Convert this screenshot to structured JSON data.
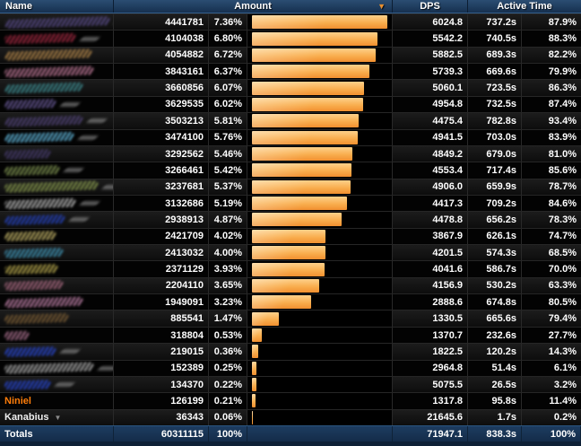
{
  "header": {
    "columns": [
      {
        "label": "Name",
        "sorted": false
      },
      {
        "label": "Amount",
        "sorted": true
      },
      {
        "label": "DPS",
        "sorted": false
      },
      {
        "label": "Active Time",
        "sorted": false
      }
    ],
    "sort_icon": "▼"
  },
  "colors": {
    "accent_sort_arrow": "#e89030",
    "bar_top": "#fdd08a",
    "bar_mid": "#f9ae4e",
    "bar_bottom": "#f19030",
    "header_top": "#2b4d72",
    "header_bottom": "#16304f",
    "totals_top": "#1d3c60",
    "totals_bottom": "#142c49",
    "niniel_class_color": "#ff7d0a"
  },
  "bar_scale": {
    "max_pct": 7.36
  },
  "rows": [
    {
      "name": {
        "censored": true,
        "color": "#574a86",
        "width": 118,
        "tail": true
      },
      "amount": "4441781",
      "pct": "7.36%",
      "pct_value": 7.36,
      "dps": "6024.8",
      "time": "737.2s",
      "active": "87.9%"
    },
    {
      "name": {
        "censored": true,
        "color": "#a22840",
        "width": 80,
        "tail": true
      },
      "amount": "4104038",
      "pct": "6.80%",
      "pct_value": 6.8,
      "dps": "5542.2",
      "time": "740.5s",
      "active": "88.3%"
    },
    {
      "name": {
        "censored": true,
        "color": "#b08448",
        "width": 98,
        "tail": false
      },
      "amount": "4054882",
      "pct": "6.72%",
      "pct_value": 6.72,
      "dps": "5882.5",
      "time": "689.3s",
      "active": "82.2%"
    },
    {
      "name": {
        "censored": true,
        "color": "#bd7796",
        "width": 100,
        "tail": false
      },
      "amount": "3843161",
      "pct": "6.37%",
      "pct_value": 6.37,
      "dps": "5739.3",
      "time": "669.6s",
      "active": "79.9%"
    },
    {
      "name": {
        "censored": true,
        "color": "#3d8b90",
        "width": 88,
        "tail": false
      },
      "amount": "3660856",
      "pct": "6.07%",
      "pct_value": 6.07,
      "dps": "5060.1",
      "time": "723.5s",
      "active": "86.3%"
    },
    {
      "name": {
        "censored": true,
        "color": "#675895",
        "width": 58,
        "tail": true
      },
      "amount": "3629535",
      "pct": "6.02%",
      "pct_value": 6.02,
      "dps": "4954.8",
      "time": "732.5s",
      "active": "87.4%"
    },
    {
      "name": {
        "censored": true,
        "color": "#4f4276",
        "width": 88,
        "tail": true
      },
      "amount": "3503213",
      "pct": "5.81%",
      "pct_value": 5.81,
      "dps": "4475.4",
      "time": "782.8s",
      "active": "93.4%"
    },
    {
      "name": {
        "censored": true,
        "color": "#62b8dd",
        "width": 78,
        "tail": true
      },
      "amount": "3474100",
      "pct": "5.76%",
      "pct_value": 5.76,
      "dps": "4941.5",
      "time": "703.0s",
      "active": "83.9%"
    },
    {
      "name": {
        "censored": true,
        "color": "#453a6b",
        "width": 52,
        "tail": false
      },
      "amount": "3292562",
      "pct": "5.46%",
      "pct_value": 5.46,
      "dps": "4849.2",
      "time": "679.0s",
      "active": "81.0%"
    },
    {
      "name": {
        "censored": true,
        "color": "#7d9150",
        "width": 62,
        "tail": true
      },
      "amount": "3266461",
      "pct": "5.42%",
      "pct_value": 5.42,
      "dps": "4553.4",
      "time": "717.4s",
      "active": "85.6%"
    },
    {
      "name": {
        "censored": true,
        "color": "#87994d",
        "width": 105,
        "tail": true
      },
      "amount": "3237681",
      "pct": "5.37%",
      "pct_value": 5.37,
      "dps": "4906.0",
      "time": "659.9s",
      "active": "78.7%"
    },
    {
      "name": {
        "censored": true,
        "color": "#b9b9b9",
        "width": 80,
        "tail": true
      },
      "amount": "3132686",
      "pct": "5.19%",
      "pct_value": 5.19,
      "dps": "4417.3",
      "time": "709.2s",
      "active": "84.6%"
    },
    {
      "name": {
        "censored": true,
        "color": "#2340bb",
        "width": 68,
        "tail": true
      },
      "amount": "2938913",
      "pct": "4.87%",
      "pct_value": 4.87,
      "dps": "4478.8",
      "time": "656.2s",
      "active": "78.3%"
    },
    {
      "name": {
        "censored": true,
        "color": "#c3b468",
        "width": 58,
        "tail": false
      },
      "amount": "2421709",
      "pct": "4.02%",
      "pct_value": 4.02,
      "dps": "3867.9",
      "time": "626.1s",
      "active": "74.7%"
    },
    {
      "name": {
        "censored": true,
        "color": "#3e93b4",
        "width": 66,
        "tail": false
      },
      "amount": "2413032",
      "pct": "4.00%",
      "pct_value": 4.0,
      "dps": "4201.5",
      "time": "574.3s",
      "active": "68.5%"
    },
    {
      "name": {
        "censored": true,
        "color": "#b8a94e",
        "width": 60,
        "tail": false
      },
      "amount": "2371129",
      "pct": "3.93%",
      "pct_value": 3.93,
      "dps": "4041.6",
      "time": "586.7s",
      "active": "70.0%"
    },
    {
      "name": {
        "censored": true,
        "color": "#a86880",
        "width": 66,
        "tail": false
      },
      "amount": "2204110",
      "pct": "3.65%",
      "pct_value": 3.65,
      "dps": "4156.9",
      "time": "530.2s",
      "active": "63.3%"
    },
    {
      "name": {
        "censored": true,
        "color": "#bd7fa6",
        "width": 88,
        "tail": false
      },
      "amount": "1949091",
      "pct": "3.23%",
      "pct_value": 3.23,
      "dps": "2888.6",
      "time": "674.8s",
      "active": "80.5%"
    },
    {
      "name": {
        "censored": true,
        "color": "#7a5c34",
        "width": 72,
        "tail": false
      },
      "amount": "885541",
      "pct": "1.47%",
      "pct_value": 1.47,
      "dps": "1330.5",
      "time": "665.6s",
      "active": "79.4%"
    },
    {
      "name": {
        "censored": true,
        "color": "#a86f8d",
        "width": 28,
        "tail": false
      },
      "amount": "318804",
      "pct": "0.53%",
      "pct_value": 0.53,
      "dps": "1370.7",
      "time": "232.6s",
      "active": "27.7%"
    },
    {
      "name": {
        "censored": true,
        "color": "#2644cc",
        "width": 58,
        "tail": true
      },
      "amount": "219015",
      "pct": "0.36%",
      "pct_value": 0.36,
      "dps": "1822.5",
      "time": "120.2s",
      "active": "14.3%"
    },
    {
      "name": {
        "censored": true,
        "color": "#adadad",
        "width": 100,
        "tail": true
      },
      "amount": "152389",
      "pct": "0.25%",
      "pct_value": 0.25,
      "dps": "2964.8",
      "time": "51.4s",
      "active": "6.1%"
    },
    {
      "name": {
        "censored": true,
        "color": "#2644cc",
        "width": 52,
        "tail": true
      },
      "amount": "134370",
      "pct": "0.22%",
      "pct_value": 0.22,
      "dps": "5075.5",
      "time": "26.5s",
      "active": "3.2%"
    },
    {
      "name": {
        "censored": false,
        "text": "Niniel",
        "color": "#ff7d0a",
        "dropdown": false
      },
      "amount": "126199",
      "pct": "0.21%",
      "pct_value": 0.21,
      "dps": "1317.8",
      "time": "95.8s",
      "active": "11.4%"
    },
    {
      "name": {
        "censored": false,
        "text": "Kanabius",
        "color": "#f0f0f0",
        "dropdown": true,
        "dropdown_icon": "▼"
      },
      "amount": "36343",
      "pct": "0.06%",
      "pct_value": 0.06,
      "dps": "21645.6",
      "time": "1.7s",
      "active": "0.2%"
    }
  ],
  "totals": {
    "label": "Totals",
    "amount": "60311115",
    "pct": "100%",
    "dps": "71947.1",
    "time": "838.3s",
    "active": "100%"
  }
}
